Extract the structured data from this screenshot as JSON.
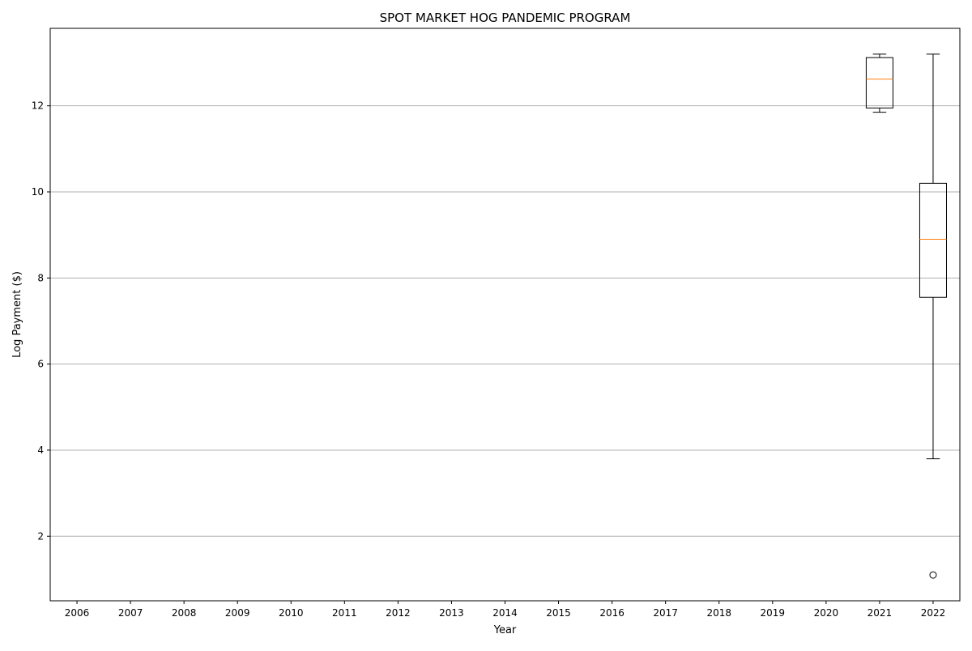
{
  "chart_data": {
    "type": "box",
    "title": "SPOT MARKET HOG PANDEMIC PROGRAM",
    "xlabel": "Year",
    "ylabel": "Log Payment ($)",
    "categories": [
      "2006",
      "2007",
      "2008",
      "2009",
      "2010",
      "2011",
      "2012",
      "2013",
      "2014",
      "2015",
      "2016",
      "2017",
      "2018",
      "2019",
      "2020",
      "2021",
      "2022"
    ],
    "ylim": [
      0.5,
      13.8
    ],
    "yticks": [
      2,
      4,
      6,
      8,
      10,
      12
    ],
    "grid": "y",
    "boxes": [
      {
        "category": "2021",
        "whisker_low": 11.85,
        "q1": 11.95,
        "median": 12.62,
        "q3": 13.12,
        "whisker_high": 13.2,
        "outliers": []
      },
      {
        "category": "2022",
        "whisker_low": 3.8,
        "q1": 7.55,
        "median": 8.9,
        "q3": 10.2,
        "whisker_high": 13.2,
        "outliers": [
          1.1
        ]
      }
    ],
    "colors": {
      "box": "#000000",
      "median": "#ff7f0e",
      "grid": "#b0b0b0"
    }
  }
}
